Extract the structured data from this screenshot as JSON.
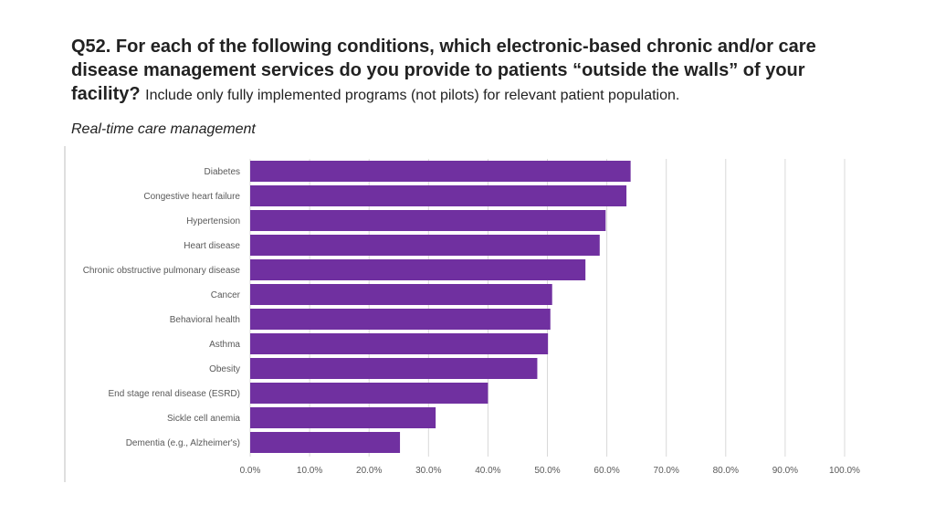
{
  "heading": {
    "question": "Q52. For each of the following conditions, which electronic-based chronic and/or care disease management services do you provide to patients “outside the walls” of your facility?",
    "note": "Include only fully implemented programs (not pilots) for relevant patient population.",
    "section": "Real-time care management"
  },
  "colors": {
    "bar": "#7030a0",
    "grid": "#d9d9d9",
    "axis_text": "#595959",
    "left_rule": "#bfbfbf"
  },
  "chart_data": {
    "type": "bar",
    "orientation": "horizontal",
    "title": "Real-time care management",
    "xlabel": "",
    "ylabel": "",
    "xlim": [
      0,
      100
    ],
    "grid": true,
    "categories": [
      "Diabetes",
      "Congestive heart failure",
      "Hypertension",
      "Heart disease",
      "Chronic obstructive pulmonary disease",
      "Cancer",
      "Behavioral health",
      "Asthma",
      "Obesity",
      "End stage renal disease (ESRD)",
      "Sickle cell anemia",
      "Dementia (e.g., Alzheimer's)"
    ],
    "values": [
      64.0,
      63.3,
      59.8,
      58.8,
      56.4,
      50.8,
      50.5,
      50.1,
      48.3,
      40.0,
      31.2,
      25.2
    ],
    "xticks": [
      0,
      10,
      20,
      30,
      40,
      50,
      60,
      70,
      80,
      90,
      100
    ],
    "xtick_labels": [
      "0.0%",
      "10.0%",
      "20.0%",
      "30.0%",
      "40.0%",
      "50.0%",
      "60.0%",
      "70.0%",
      "80.0%",
      "90.0%",
      "100.0%"
    ]
  }
}
